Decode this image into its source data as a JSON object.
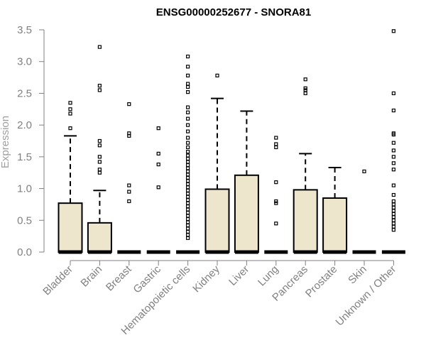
{
  "chart_data": {
    "type": "boxplot",
    "title": "ENSG00000252677 - SNORA81",
    "ylabel": "Expression",
    "xlabel": "",
    "ylim": [
      0,
      3.5
    ],
    "yticks": [
      "0.0",
      "0.5",
      "1.0",
      "1.5",
      "2.0",
      "2.5",
      "3.0",
      "3.5"
    ],
    "grid": false,
    "box_fill": "#ede6cd",
    "categories": [
      "Bladder",
      "Brain",
      "Breast",
      "Gastric",
      "Hematopoietic cells",
      "Kidney",
      "Liver",
      "Lung",
      "Pancreas",
      "Prostate",
      "Skin",
      "Unknown / Other"
    ],
    "boxes": [
      {
        "q1": 0,
        "median": 0,
        "q3": 0.77,
        "whisker_low": 0,
        "whisker_high": 1.83,
        "outliers": [
          1.95,
          2.18,
          2.25,
          2.35
        ]
      },
      {
        "q1": 0,
        "median": 0,
        "q3": 0.46,
        "whisker_low": 0,
        "whisker_high": 0.97,
        "outliers": [
          1.25,
          1.3,
          1.42,
          1.5,
          1.68,
          1.75,
          2.55,
          2.62,
          3.23
        ]
      },
      {
        "q1": 0,
        "median": 0,
        "q3": 0,
        "whisker_low": 0,
        "whisker_high": 0,
        "outliers": [
          0.8,
          0.95,
          1.05,
          1.83,
          1.87,
          2.33
        ]
      },
      {
        "q1": 0,
        "median": 0,
        "q3": 0,
        "whisker_low": 0,
        "whisker_high": 0,
        "outliers": [
          1.02,
          1.38,
          1.55,
          1.95
        ]
      },
      {
        "q1": 0,
        "median": 0,
        "q3": 0,
        "whisker_low": 0,
        "whisker_high": 0,
        "outliers": [
          0.22,
          0.27,
          0.32,
          0.37,
          0.42,
          0.47,
          0.52,
          0.57,
          0.62,
          0.67,
          0.72,
          0.77,
          0.82,
          0.87,
          0.92,
          0.97,
          1.02,
          1.07,
          1.12,
          1.17,
          1.22,
          1.27,
          1.32,
          1.37,
          1.42,
          1.47,
          1.52,
          1.58,
          1.65,
          1.72,
          1.8,
          1.9,
          2.0,
          2.1,
          2.2,
          2.28,
          2.52,
          2.6,
          2.65,
          2.78,
          2.92,
          3.08
        ]
      },
      {
        "q1": 0,
        "median": 0,
        "q3": 0.99,
        "whisker_low": 0,
        "whisker_high": 2.42,
        "outliers": [
          2.78
        ]
      },
      {
        "q1": 0,
        "median": 0,
        "q3": 1.21,
        "whisker_low": 0,
        "whisker_high": 2.22,
        "outliers": []
      },
      {
        "q1": 0,
        "median": 0,
        "q3": 0,
        "whisker_low": 0,
        "whisker_high": 0,
        "outliers": [
          0.45,
          0.77,
          0.8,
          1.1,
          1.65,
          1.7,
          1.8
        ]
      },
      {
        "q1": 0,
        "median": 0,
        "q3": 0.98,
        "whisker_low": 0,
        "whisker_high": 1.55,
        "outliers": [
          2.5,
          2.55,
          2.58,
          2.72
        ]
      },
      {
        "q1": 0,
        "median": 0,
        "q3": 0.85,
        "whisker_low": 0,
        "whisker_high": 1.33,
        "outliers": []
      },
      {
        "q1": 0,
        "median": 0,
        "q3": 0,
        "whisker_low": 0,
        "whisker_high": 0,
        "outliers": [
          1.27
        ]
      },
      {
        "q1": 0,
        "median": 0,
        "q3": 0,
        "whisker_low": 0,
        "whisker_high": 0,
        "outliers": [
          0.35,
          0.4,
          0.45,
          0.5,
          0.55,
          0.6,
          0.65,
          0.7,
          0.75,
          0.8,
          0.9,
          1.05,
          1.3,
          1.4,
          1.5,
          1.6,
          1.72,
          1.85,
          1.87,
          2.23,
          2.5,
          3.48
        ]
      }
    ]
  }
}
